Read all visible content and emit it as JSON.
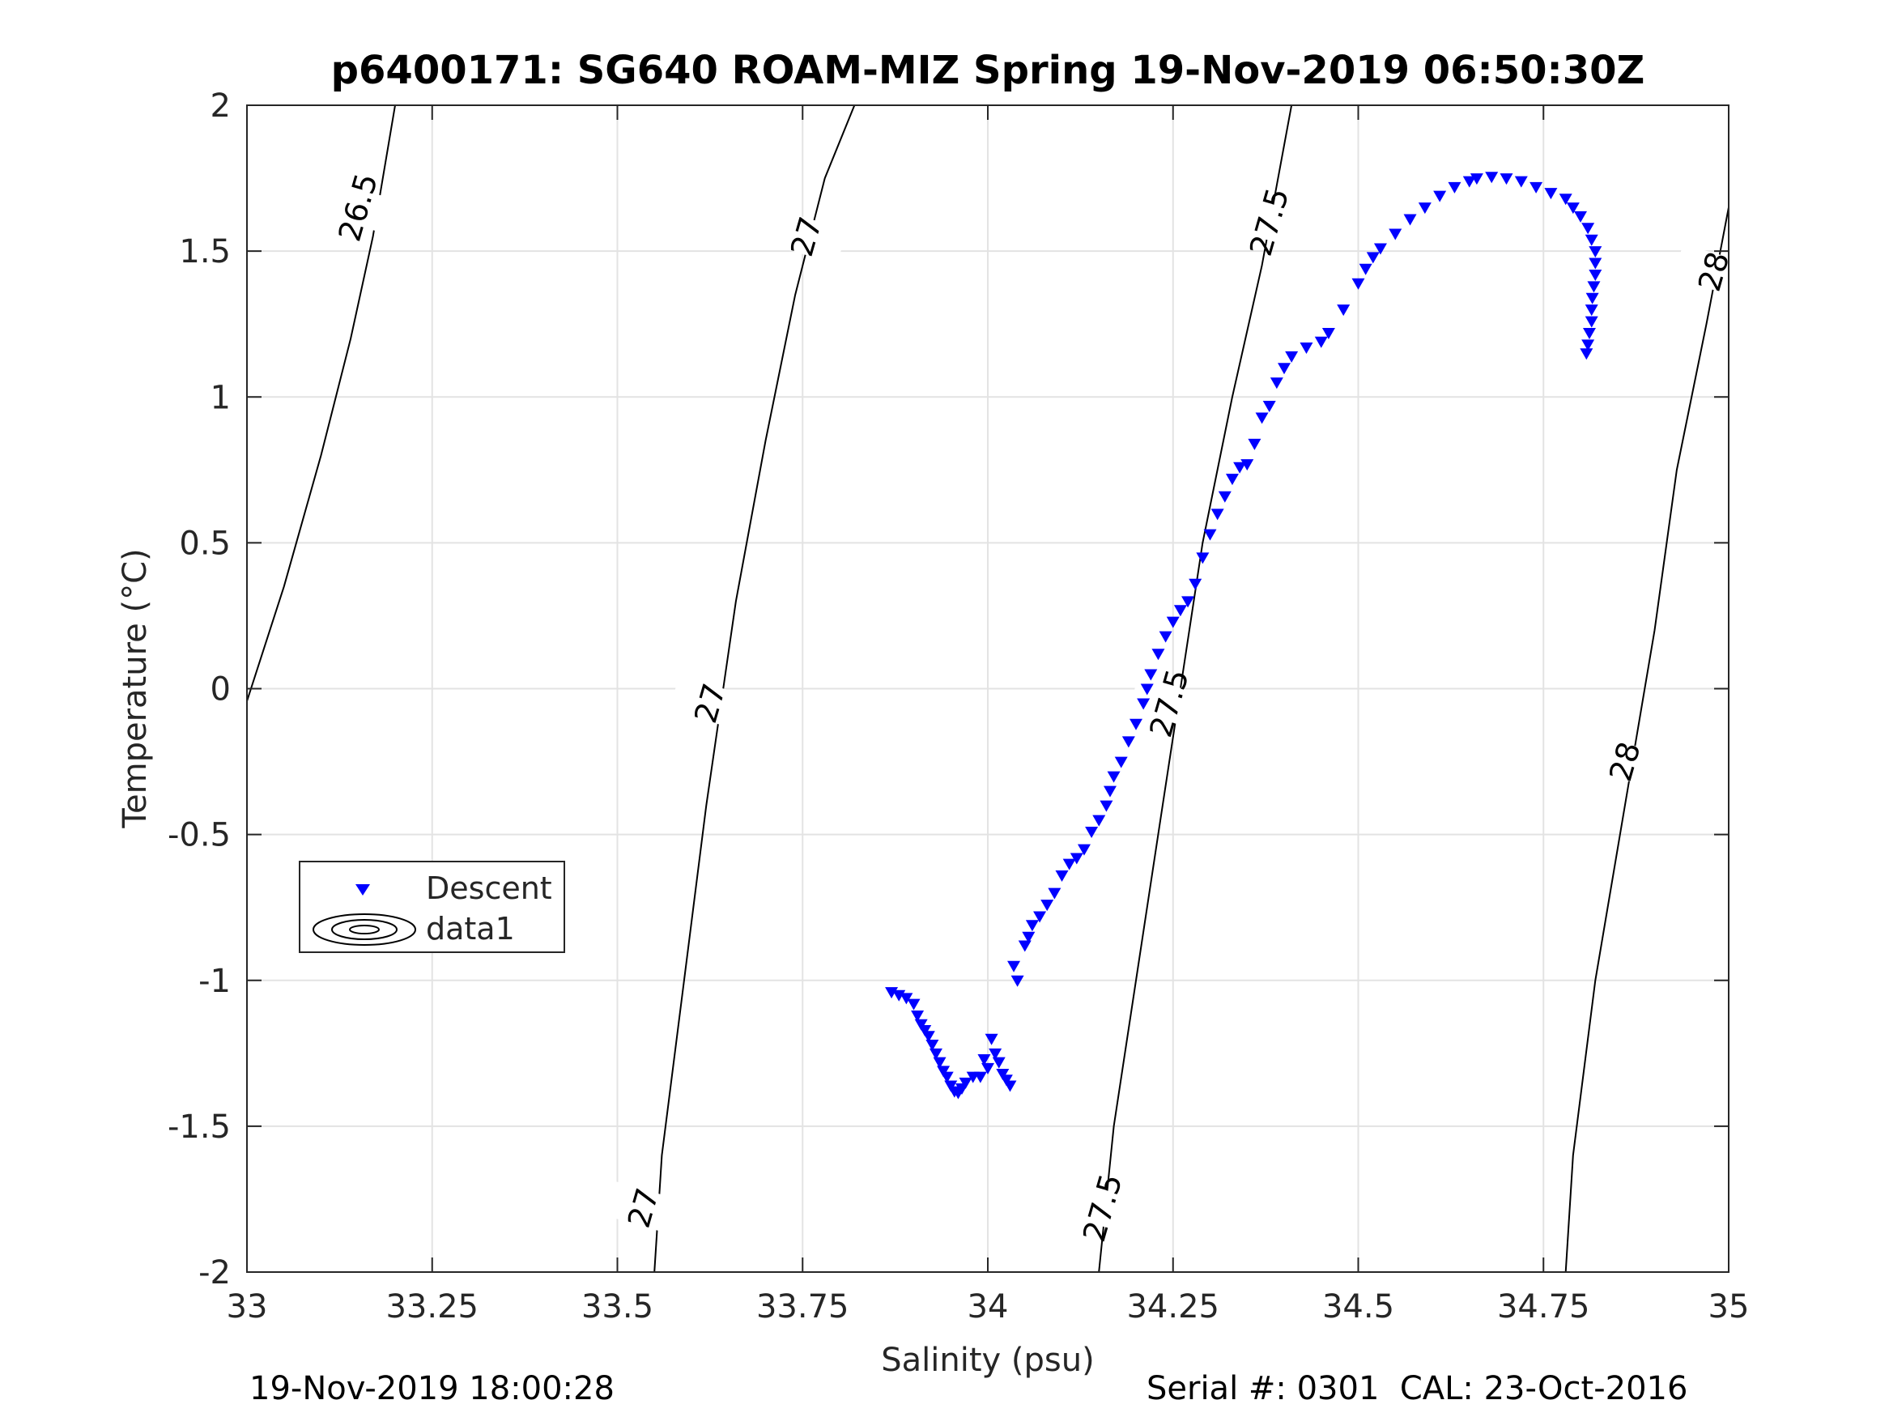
{
  "chart_data": {
    "type": "scatter",
    "title": "p6400171: SG640 ROAM-MIZ Spring 19-Nov-2019 06:50:30Z",
    "xlabel": "Salinity (psu)",
    "ylabel": "Temperature (°C)",
    "xlim": [
      33,
      35
    ],
    "ylim": [
      -2,
      2
    ],
    "x_ticks": [
      "33",
      "33.25",
      "33.5",
      "33.75",
      "34",
      "34.25",
      "34.5",
      "34.75",
      "35"
    ],
    "y_ticks": [
      "2",
      "1.5",
      "1",
      "0.5",
      "0",
      "-0.5",
      "-1",
      "-1.5",
      "-2"
    ],
    "grid": true,
    "legend_position": "lower-left",
    "legend": [
      {
        "label": "Descent",
        "marker": "triangle-down",
        "color": "#0000ff"
      },
      {
        "label": "data1",
        "marker": "contour",
        "color": "#000000"
      }
    ],
    "series": [
      {
        "name": "Descent",
        "color": "#0000ff",
        "marker": "triangle-down",
        "points": [
          [
            33.87,
            -1.04
          ],
          [
            33.88,
            -1.05
          ],
          [
            33.89,
            -1.06
          ],
          [
            33.9,
            -1.08
          ],
          [
            33.905,
            -1.12
          ],
          [
            33.91,
            -1.15
          ],
          [
            33.915,
            -1.17
          ],
          [
            33.92,
            -1.19
          ],
          [
            33.925,
            -1.22
          ],
          [
            33.93,
            -1.25
          ],
          [
            33.935,
            -1.28
          ],
          [
            33.94,
            -1.31
          ],
          [
            33.945,
            -1.33
          ],
          [
            33.95,
            -1.36
          ],
          [
            33.955,
            -1.38
          ],
          [
            33.96,
            -1.385
          ],
          [
            33.965,
            -1.37
          ],
          [
            33.97,
            -1.35
          ],
          [
            33.98,
            -1.33
          ],
          [
            33.99,
            -1.33
          ],
          [
            33.995,
            -1.27
          ],
          [
            34.0,
            -1.3
          ],
          [
            34.005,
            -1.2
          ],
          [
            34.01,
            -1.25
          ],
          [
            34.015,
            -1.28
          ],
          [
            34.02,
            -1.32
          ],
          [
            34.025,
            -1.34
          ],
          [
            34.03,
            -1.36
          ],
          [
            34.035,
            -0.95
          ],
          [
            34.04,
            -1.0
          ],
          [
            34.05,
            -0.88
          ],
          [
            34.055,
            -0.85
          ],
          [
            34.06,
            -0.81
          ],
          [
            34.07,
            -0.78
          ],
          [
            34.08,
            -0.74
          ],
          [
            34.09,
            -0.7
          ],
          [
            34.1,
            -0.64
          ],
          [
            34.11,
            -0.6
          ],
          [
            34.12,
            -0.58
          ],
          [
            34.13,
            -0.55
          ],
          [
            34.14,
            -0.49
          ],
          [
            34.15,
            -0.45
          ],
          [
            34.16,
            -0.4
          ],
          [
            34.165,
            -0.35
          ],
          [
            34.17,
            -0.3
          ],
          [
            34.18,
            -0.25
          ],
          [
            34.19,
            -0.18
          ],
          [
            34.2,
            -0.12
          ],
          [
            34.21,
            -0.05
          ],
          [
            34.215,
            0.0
          ],
          [
            34.22,
            0.05
          ],
          [
            34.23,
            0.12
          ],
          [
            34.24,
            0.18
          ],
          [
            34.25,
            0.23
          ],
          [
            34.26,
            0.27
          ],
          [
            34.27,
            0.3
          ],
          [
            34.28,
            0.36
          ],
          [
            34.29,
            0.45
          ],
          [
            34.3,
            0.53
          ],
          [
            34.31,
            0.6
          ],
          [
            34.32,
            0.66
          ],
          [
            34.33,
            0.72
          ],
          [
            34.34,
            0.76
          ],
          [
            34.35,
            0.77
          ],
          [
            34.36,
            0.84
          ],
          [
            34.37,
            0.93
          ],
          [
            34.38,
            0.97
          ],
          [
            34.39,
            1.05
          ],
          [
            34.4,
            1.1
          ],
          [
            34.41,
            1.14
          ],
          [
            34.43,
            1.17
          ],
          [
            34.45,
            1.19
          ],
          [
            34.46,
            1.22
          ],
          [
            34.48,
            1.3
          ],
          [
            34.5,
            1.39
          ],
          [
            34.51,
            1.44
          ],
          [
            34.52,
            1.48
          ],
          [
            34.53,
            1.51
          ],
          [
            34.55,
            1.56
          ],
          [
            34.57,
            1.61
          ],
          [
            34.59,
            1.65
          ],
          [
            34.61,
            1.69
          ],
          [
            34.63,
            1.72
          ],
          [
            34.65,
            1.74
          ],
          [
            34.66,
            1.75
          ],
          [
            34.68,
            1.755
          ],
          [
            34.7,
            1.75
          ],
          [
            34.72,
            1.74
          ],
          [
            34.74,
            1.72
          ],
          [
            34.76,
            1.7
          ],
          [
            34.78,
            1.68
          ],
          [
            34.79,
            1.65
          ],
          [
            34.8,
            1.62
          ],
          [
            34.81,
            1.58
          ],
          [
            34.815,
            1.54
          ],
          [
            34.82,
            1.5
          ],
          [
            34.82,
            1.46
          ],
          [
            34.82,
            1.42
          ],
          [
            34.818,
            1.38
          ],
          [
            34.816,
            1.34
          ],
          [
            34.815,
            1.3
          ],
          [
            34.815,
            1.26
          ],
          [
            34.812,
            1.22
          ],
          [
            34.81,
            1.18
          ],
          [
            34.808,
            1.15
          ]
        ]
      }
    ],
    "contours": [
      {
        "label": "26.5",
        "points": [
          [
            32.98,
            -0.2
          ],
          [
            33.05,
            0.35
          ],
          [
            33.1,
            0.8
          ],
          [
            33.14,
            1.2
          ],
          [
            33.17,
            1.55
          ],
          [
            33.2,
            2.0
          ]
        ],
        "labels_at": [
          [
            33.15,
            1.65
          ]
        ]
      },
      {
        "label": "27",
        "points": [
          [
            33.55,
            -2.0
          ],
          [
            33.56,
            -1.6
          ],
          [
            33.59,
            -1.0
          ],
          [
            33.62,
            -0.4
          ],
          [
            33.66,
            0.3
          ],
          [
            33.7,
            0.85
          ],
          [
            33.74,
            1.35
          ],
          [
            33.78,
            1.75
          ],
          [
            33.82,
            2.0
          ]
        ],
        "labels_at": [
          [
            33.535,
            -1.78
          ],
          [
            33.625,
            -0.05
          ],
          [
            33.755,
            1.55
          ]
        ]
      },
      {
        "label": "27.5",
        "points": [
          [
            34.15,
            -2.0
          ],
          [
            34.17,
            -1.5
          ],
          [
            34.2,
            -1.0
          ],
          [
            34.23,
            -0.5
          ],
          [
            34.26,
            0.0
          ],
          [
            34.29,
            0.5
          ],
          [
            34.33,
            1.0
          ],
          [
            34.37,
            1.45
          ],
          [
            34.41,
            2.0
          ]
        ],
        "labels_at": [
          [
            34.155,
            -1.78
          ],
          [
            34.245,
            -0.05
          ],
          [
            34.38,
            1.6
          ]
        ]
      },
      {
        "label": "28",
        "points": [
          [
            34.78,
            -2.0
          ],
          [
            34.79,
            -1.6
          ],
          [
            34.82,
            -1.0
          ],
          [
            34.86,
            -0.4
          ],
          [
            34.9,
            0.2
          ],
          [
            34.93,
            0.75
          ],
          [
            34.97,
            1.25
          ],
          [
            35.0,
            1.65
          ]
        ],
        "labels_at": [
          [
            34.86,
            -0.25
          ],
          [
            34.98,
            1.43
          ]
        ]
      }
    ]
  },
  "footer": {
    "timestamp": "19-Nov-2019 18:00:28",
    "serial": "Serial #: 0301  CAL: 23-Oct-2016"
  }
}
